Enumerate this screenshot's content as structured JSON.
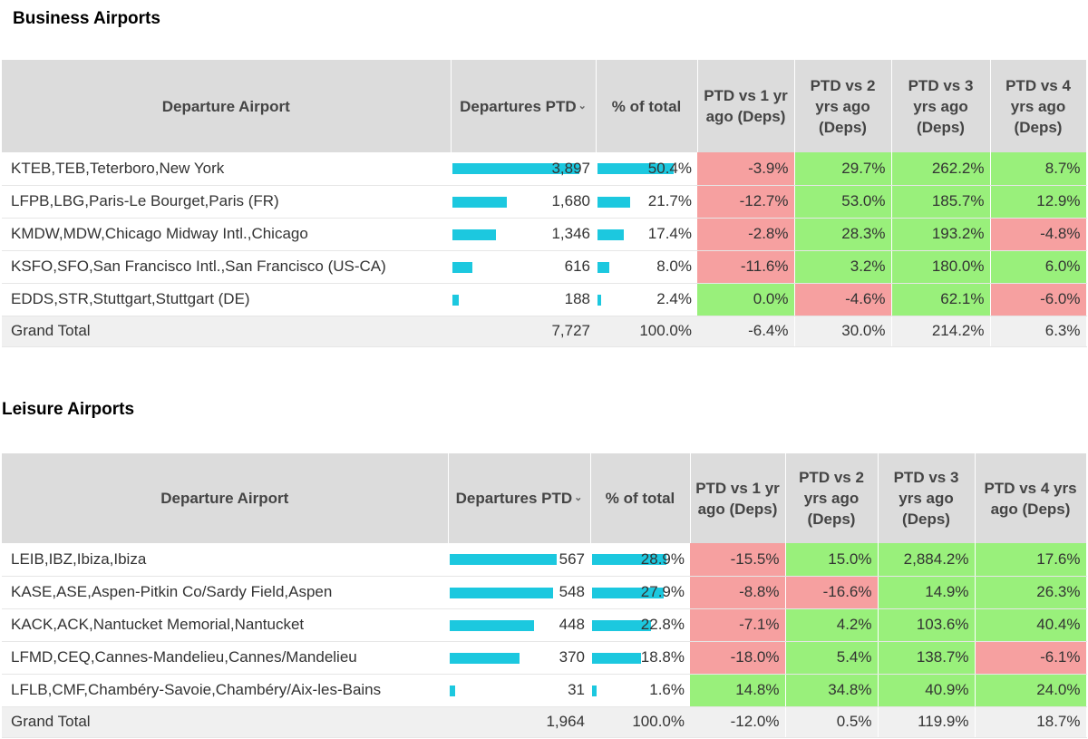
{
  "business": {
    "title": "Business Airports",
    "headers": {
      "airport": "Departure Airport",
      "departures": "Departures PTD",
      "pct": "% of total",
      "vs1": "PTD vs 1 yr ago (Deps)",
      "vs2": "PTD vs 2 yrs ago (Deps)",
      "vs3": "PTD vs 3 yrs ago (Deps)",
      "vs4": "PTD vs 4 yrs ago (Deps)"
    },
    "rows": [
      {
        "name": "KTEB,TEB,Teterboro,New York",
        "deps": "3,897",
        "pct": "50.4%",
        "vs1": "-3.9%",
        "vs2": "29.7%",
        "vs3": "262.2%",
        "vs4": "8.7%",
        "dep_frac": 1.0,
        "pct_frac": 1.0
      },
      {
        "name": "LFPB,LBG,Paris-Le Bourget,Paris (FR)",
        "deps": "1,680",
        "pct": "21.7%",
        "vs1": "-12.7%",
        "vs2": "53.0%",
        "vs3": "185.7%",
        "vs4": "12.9%",
        "dep_frac": 0.431,
        "pct_frac": 0.431
      },
      {
        "name": "KMDW,MDW,Chicago Midway Intl.,Chicago",
        "deps": "1,346",
        "pct": "17.4%",
        "vs1": "-2.8%",
        "vs2": "28.3%",
        "vs3": "193.2%",
        "vs4": "-4.8%",
        "dep_frac": 0.345,
        "pct_frac": 0.345
      },
      {
        "name": "KSFO,SFO,San Francisco Intl.,San Francisco (US-CA)",
        "deps": "616",
        "pct": "8.0%",
        "vs1": "-11.6%",
        "vs2": "3.2%",
        "vs3": "180.0%",
        "vs4": "6.0%",
        "dep_frac": 0.158,
        "pct_frac": 0.158
      },
      {
        "name": "EDDS,STR,Stuttgart,Stuttgart (DE)",
        "deps": "188",
        "pct": "2.4%",
        "vs1": "0.0%",
        "vs2": "-4.6%",
        "vs3": "62.1%",
        "vs4": "-6.0%",
        "dep_frac": 0.048,
        "pct_frac": 0.048
      }
    ],
    "total": {
      "name": "Grand Total",
      "deps": "7,727",
      "pct": "100.0%",
      "vs1": "-6.4%",
      "vs2": "30.0%",
      "vs3": "214.2%",
      "vs4": "6.3%"
    }
  },
  "leisure": {
    "title": "Leisure Airports",
    "headers": {
      "airport": "Departure Airport",
      "departures": "Departures PTD",
      "pct": "% of total",
      "vs1": "PTD vs 1 yr ago (Deps)",
      "vs2": "PTD vs 2 yrs ago (Deps)",
      "vs3": "PTD vs 3 yrs ago (Deps)",
      "vs4": "PTD vs 4 yrs ago (Deps)"
    },
    "rows": [
      {
        "name": "LEIB,IBZ,Ibiza,Ibiza",
        "deps": "567",
        "pct": "28.9%",
        "vs1": "-15.5%",
        "vs2": "15.0%",
        "vs3": "2,884.2%",
        "vs4": "17.6%",
        "dep_frac": 1.0,
        "pct_frac": 1.0
      },
      {
        "name": "KASE,ASE,Aspen-Pitkin Co/Sardy Field,Aspen",
        "deps": "548",
        "pct": "27.9%",
        "vs1": "-8.8%",
        "vs2": "-16.6%",
        "vs3": "14.9%",
        "vs4": "26.3%",
        "dep_frac": 0.966,
        "pct_frac": 0.966
      },
      {
        "name": "KACK,ACK,Nantucket Memorial,Nantucket",
        "deps": "448",
        "pct": "22.8%",
        "vs1": "-7.1%",
        "vs2": "4.2%",
        "vs3": "103.6%",
        "vs4": "40.4%",
        "dep_frac": 0.79,
        "pct_frac": 0.79
      },
      {
        "name": "LFMD,CEQ,Cannes-Mandelieu,Cannes/Mandelieu",
        "deps": "370",
        "pct": "18.8%",
        "vs1": "-18.0%",
        "vs2": "5.4%",
        "vs3": "138.7%",
        "vs4": "-6.1%",
        "dep_frac": 0.653,
        "pct_frac": 0.653
      },
      {
        "name": "LFLB,CMF,Chambéry-Savoie,Chambéry/Aix-les-Bains",
        "deps": "31",
        "pct": "1.6%",
        "vs1": "14.8%",
        "vs2": "34.8%",
        "vs3": "40.9%",
        "vs4": "24.0%",
        "dep_frac": 0.055,
        "pct_frac": 0.055
      }
    ],
    "total": {
      "name": "Grand Total",
      "deps": "1,964",
      "pct": "100.0%",
      "vs1": "-12.0%",
      "vs2": "0.5%",
      "vs3": "119.9%",
      "vs4": "18.7%"
    }
  },
  "colors": {
    "positive": "#99f07b",
    "negative": "#f6a0a0",
    "bar": "#1cc8df",
    "header": "#dcdcdc"
  }
}
